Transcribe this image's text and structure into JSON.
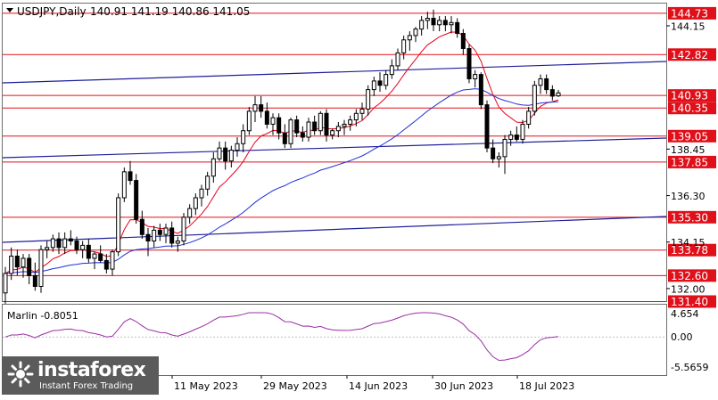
{
  "header": {
    "symbol": "USDJPY,Daily",
    "ohlc": "140.91 141.19 140.86 141.05"
  },
  "oscillator": {
    "label": "Marlin -0.8051",
    "ticks": [
      "4.654",
      "0.00",
      "-5.5659"
    ]
  },
  "x_labels": [
    "2023",
    "11 May 2023",
    "29 May 2023",
    "14 Jun 2023",
    "30 Jun 2023",
    "18 Jul 2023"
  ],
  "logo": {
    "brand": "instaforex",
    "tagline": "Instant Forex Trading"
  },
  "colors": {
    "candle": "#000000",
    "ma_fast": "#e8001c",
    "ma_slow": "#1f2fd4",
    "level_line": "#e0101a",
    "trend_line": "#1e1e9a",
    "oscillator": "#9b2fa6"
  },
  "chart_data": {
    "type": "candlestick",
    "title": "USDJPY,Daily",
    "y_axis_ticks": [
      144.15,
      138.45,
      136.3,
      134.15,
      132.0
    ],
    "ylim": [
      131.4,
      145.2
    ],
    "levels": [
      {
        "label": "144.73",
        "value": 144.73
      },
      {
        "label": "142.82",
        "value": 142.82
      },
      {
        "label": "140.93",
        "value": 140.93
      },
      {
        "label": "140.35",
        "value": 140.35
      },
      {
        "label": "139.05",
        "value": 139.05
      },
      {
        "label": "137.85",
        "value": 137.85
      },
      {
        "label": "135.30",
        "value": 135.3
      },
      {
        "label": "133.78",
        "value": 133.78
      },
      {
        "label": "132.60",
        "value": 132.6
      },
      {
        "label": "131.40",
        "value": 131.4
      }
    ],
    "x_axis_labels": [
      "2023",
      "11 May 2023",
      "29 May 2023",
      "14 Jun 2023",
      "30 Jun 2023",
      "18 Jul 2023"
    ],
    "candles": [
      [
        131.8,
        133.0,
        131.3,
        132.7
      ],
      [
        132.7,
        133.9,
        132.4,
        133.5
      ],
      [
        133.5,
        133.8,
        132.6,
        133.0
      ],
      [
        133.0,
        133.6,
        132.5,
        133.4
      ],
      [
        133.4,
        133.6,
        132.2,
        132.6
      ],
      [
        132.6,
        133.2,
        131.9,
        132.1
      ],
      [
        132.1,
        134.0,
        131.8,
        133.8
      ],
      [
        133.8,
        134.2,
        133.4,
        133.9
      ],
      [
        133.9,
        134.5,
        133.7,
        134.3
      ],
      [
        134.3,
        134.6,
        133.6,
        133.9
      ],
      [
        133.9,
        134.6,
        133.6,
        134.3
      ],
      [
        134.3,
        134.7,
        134.0,
        134.2
      ],
      [
        134.2,
        134.4,
        133.6,
        133.8
      ],
      [
        133.8,
        134.2,
        133.4,
        134.0
      ],
      [
        134.0,
        134.3,
        133.2,
        133.4
      ],
      [
        133.4,
        133.7,
        132.9,
        133.6
      ],
      [
        133.6,
        134.0,
        133.2,
        133.3
      ],
      [
        133.3,
        133.6,
        132.7,
        132.9
      ],
      [
        132.9,
        133.8,
        132.6,
        133.7
      ],
      [
        133.7,
        136.4,
        133.5,
        136.2
      ],
      [
        136.2,
        137.6,
        136.0,
        137.4
      ],
      [
        137.4,
        137.9,
        136.8,
        137.0
      ],
      [
        137.0,
        137.3,
        135.0,
        135.2
      ],
      [
        135.2,
        135.6,
        134.3,
        134.5
      ],
      [
        134.5,
        134.8,
        133.5,
        134.2
      ],
      [
        134.2,
        134.9,
        133.9,
        134.7
      ],
      [
        134.7,
        135.0,
        134.2,
        134.5
      ],
      [
        134.5,
        135.0,
        134.1,
        134.8
      ],
      [
        134.8,
        135.1,
        133.9,
        134.1
      ],
      [
        134.1,
        134.4,
        133.7,
        134.2
      ],
      [
        134.2,
        135.5,
        134.0,
        135.3
      ],
      [
        135.3,
        135.9,
        135.0,
        135.7
      ],
      [
        135.7,
        136.4,
        135.4,
        136.2
      ],
      [
        136.2,
        136.8,
        135.8,
        136.6
      ],
      [
        136.6,
        137.4,
        136.3,
        137.2
      ],
      [
        137.2,
        138.3,
        136.9,
        138.0
      ],
      [
        138.0,
        138.8,
        137.9,
        138.5
      ],
      [
        138.5,
        138.8,
        137.5,
        137.9
      ],
      [
        137.9,
        138.6,
        137.6,
        138.4
      ],
      [
        138.4,
        139.0,
        138.1,
        138.7
      ],
      [
        138.7,
        139.6,
        138.3,
        139.3
      ],
      [
        139.3,
        140.4,
        139.1,
        140.2
      ],
      [
        140.2,
        140.9,
        139.7,
        140.5
      ],
      [
        140.5,
        140.9,
        139.9,
        140.2
      ],
      [
        140.2,
        140.6,
        139.4,
        139.6
      ],
      [
        139.6,
        140.1,
        139.1,
        139.9
      ],
      [
        139.9,
        140.1,
        138.9,
        139.2
      ],
      [
        139.2,
        139.6,
        138.5,
        138.7
      ],
      [
        138.7,
        139.9,
        138.5,
        139.8
      ],
      [
        139.8,
        140.0,
        139.0,
        139.2
      ],
      [
        139.2,
        139.5,
        138.8,
        139.0
      ],
      [
        139.0,
        139.9,
        138.8,
        139.7
      ],
      [
        139.7,
        140.0,
        139.1,
        139.3
      ],
      [
        139.3,
        140.2,
        139.1,
        140.1
      ],
      [
        140.1,
        140.3,
        138.8,
        139.1
      ],
      [
        139.1,
        139.4,
        138.9,
        139.3
      ],
      [
        139.3,
        139.7,
        139.0,
        139.5
      ],
      [
        139.5,
        139.8,
        139.1,
        139.6
      ],
      [
        139.6,
        140.0,
        139.3,
        139.8
      ],
      [
        139.8,
        140.3,
        139.5,
        140.1
      ],
      [
        140.1,
        140.6,
        139.8,
        140.3
      ],
      [
        140.3,
        141.4,
        140.0,
        141.2
      ],
      [
        141.2,
        141.8,
        140.9,
        141.6
      ],
      [
        141.6,
        142.0,
        141.1,
        141.4
      ],
      [
        141.4,
        142.1,
        141.2,
        141.9
      ],
      [
        141.9,
        142.6,
        141.7,
        142.3
      ],
      [
        142.3,
        143.1,
        142.1,
        142.9
      ],
      [
        142.9,
        143.7,
        142.6,
        143.5
      ],
      [
        143.5,
        143.9,
        143.0,
        143.7
      ],
      [
        143.7,
        144.1,
        143.4,
        144.0
      ],
      [
        144.0,
        144.6,
        143.7,
        144.4
      ],
      [
        144.4,
        144.8,
        144.0,
        144.5
      ],
      [
        144.5,
        144.9,
        143.9,
        144.2
      ],
      [
        144.2,
        144.6,
        143.9,
        144.4
      ],
      [
        144.4,
        144.6,
        143.9,
        144.2
      ],
      [
        144.2,
        144.6,
        143.8,
        144.3
      ],
      [
        144.3,
        144.5,
        143.6,
        143.8
      ],
      [
        143.8,
        144.0,
        142.8,
        143.1
      ],
      [
        143.1,
        143.3,
        141.5,
        141.7
      ],
      [
        141.7,
        142.1,
        141.3,
        141.9
      ],
      [
        141.9,
        142.0,
        140.3,
        140.5
      ],
      [
        140.5,
        140.7,
        138.3,
        138.5
      ],
      [
        138.5,
        138.9,
        137.8,
        138.0
      ],
      [
        138.0,
        138.3,
        137.6,
        138.1
      ],
      [
        138.1,
        139.1,
        137.3,
        138.9
      ],
      [
        138.9,
        139.3,
        138.6,
        139.1
      ],
      [
        139.1,
        139.5,
        138.8,
        138.9
      ],
      [
        138.9,
        139.8,
        138.7,
        139.6
      ],
      [
        139.6,
        140.4,
        139.4,
        140.2
      ],
      [
        140.2,
        141.6,
        140.0,
        141.4
      ],
      [
        141.4,
        141.9,
        141.0,
        141.7
      ],
      [
        141.7,
        141.9,
        141.0,
        141.2
      ],
      [
        141.2,
        141.4,
        140.7,
        140.9
      ],
      [
        140.91,
        141.19,
        140.86,
        141.05
      ]
    ]
  }
}
